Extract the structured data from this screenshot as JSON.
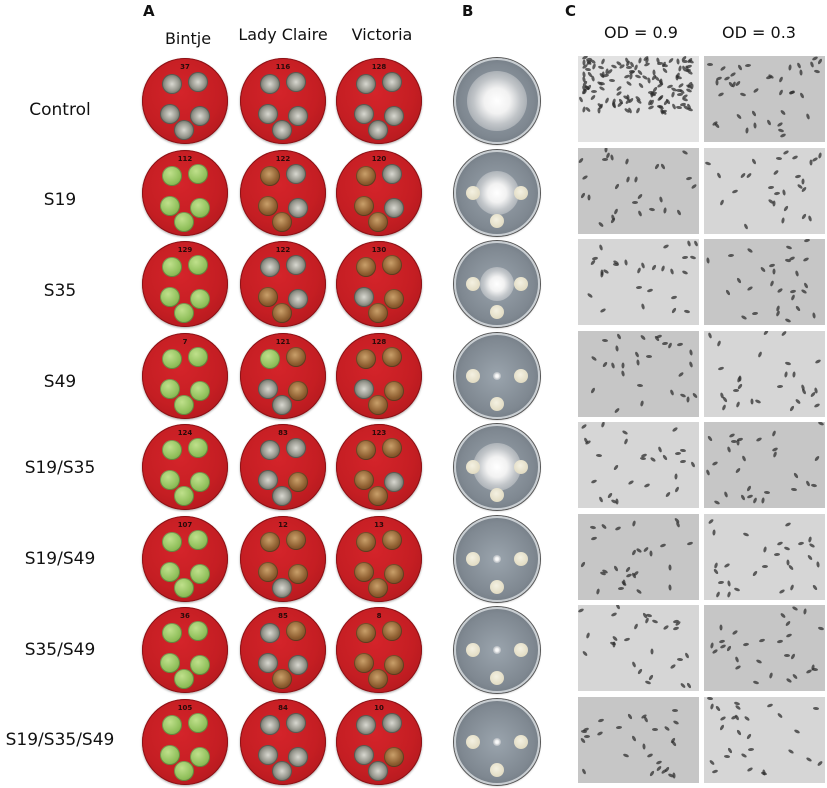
{
  "panels": {
    "a": "A",
    "b": "B",
    "c": "C"
  },
  "cultivars": [
    "Bintje",
    "Lady Claire",
    "Victoria"
  ],
  "od_labels": [
    "OD = 0.9",
    "OD = 0.3"
  ],
  "treatments": [
    "Control",
    "S19",
    "S35",
    "S49",
    "S19/S35",
    "S19/S49",
    "S35/S49",
    "S19/S35/S49"
  ],
  "dish_ids": [
    [
      "37",
      "116",
      "128"
    ],
    [
      "112",
      "122",
      "120"
    ],
    [
      "129",
      "122",
      "130"
    ],
    [
      "7",
      "121",
      "128"
    ],
    [
      "124",
      "83",
      "123"
    ],
    [
      "107",
      "12",
      "13"
    ],
    [
      "36",
      "85",
      "8"
    ],
    [
      "105",
      "84",
      "10"
    ]
  ],
  "colors": {
    "agar_red": "#c51e23",
    "leaf_green": "#8fbf5a",
    "plate_grey": "#7f8891",
    "micro_bg": "#cfcfcf"
  }
}
